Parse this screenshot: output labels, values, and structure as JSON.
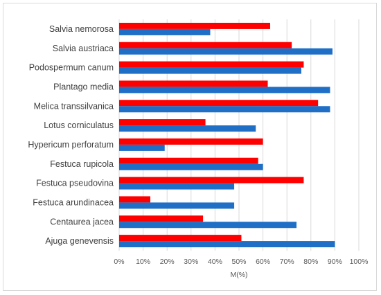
{
  "chart_data": {
    "type": "bar",
    "orientation": "horizontal",
    "categories": [
      "Salvia nemorosa",
      "Salvia austriaca",
      "Podospermum canum",
      "Plantago media",
      "Melica transsilvanica",
      "Lotus corniculatus",
      "Hypericum perforatum",
      "Festuca rupicola",
      "Festuca pseudovina",
      "Festuca arundinacea",
      "Centaurea jacea",
      "Ajuga genevensis"
    ],
    "series": [
      {
        "color": "#ff0000",
        "values": [
          0.63,
          0.72,
          0.77,
          0.62,
          0.83,
          0.36,
          0.6,
          0.58,
          0.77,
          0.13,
          0.35,
          0.51
        ]
      },
      {
        "color": "#1f6fc6",
        "values": [
          0.38,
          0.89,
          0.76,
          0.88,
          0.88,
          0.57,
          0.19,
          0.6,
          0.48,
          0.48,
          0.74,
          0.9
        ]
      }
    ],
    "xlabel": "M(%)",
    "ylabel": "",
    "xlim": [
      0,
      1
    ],
    "xticks": [
      "0%",
      "10%",
      "20%",
      "30%",
      "40%",
      "50%",
      "60%",
      "70%",
      "80%",
      "90%",
      "100%"
    ],
    "grid": true,
    "legend": "none"
  }
}
